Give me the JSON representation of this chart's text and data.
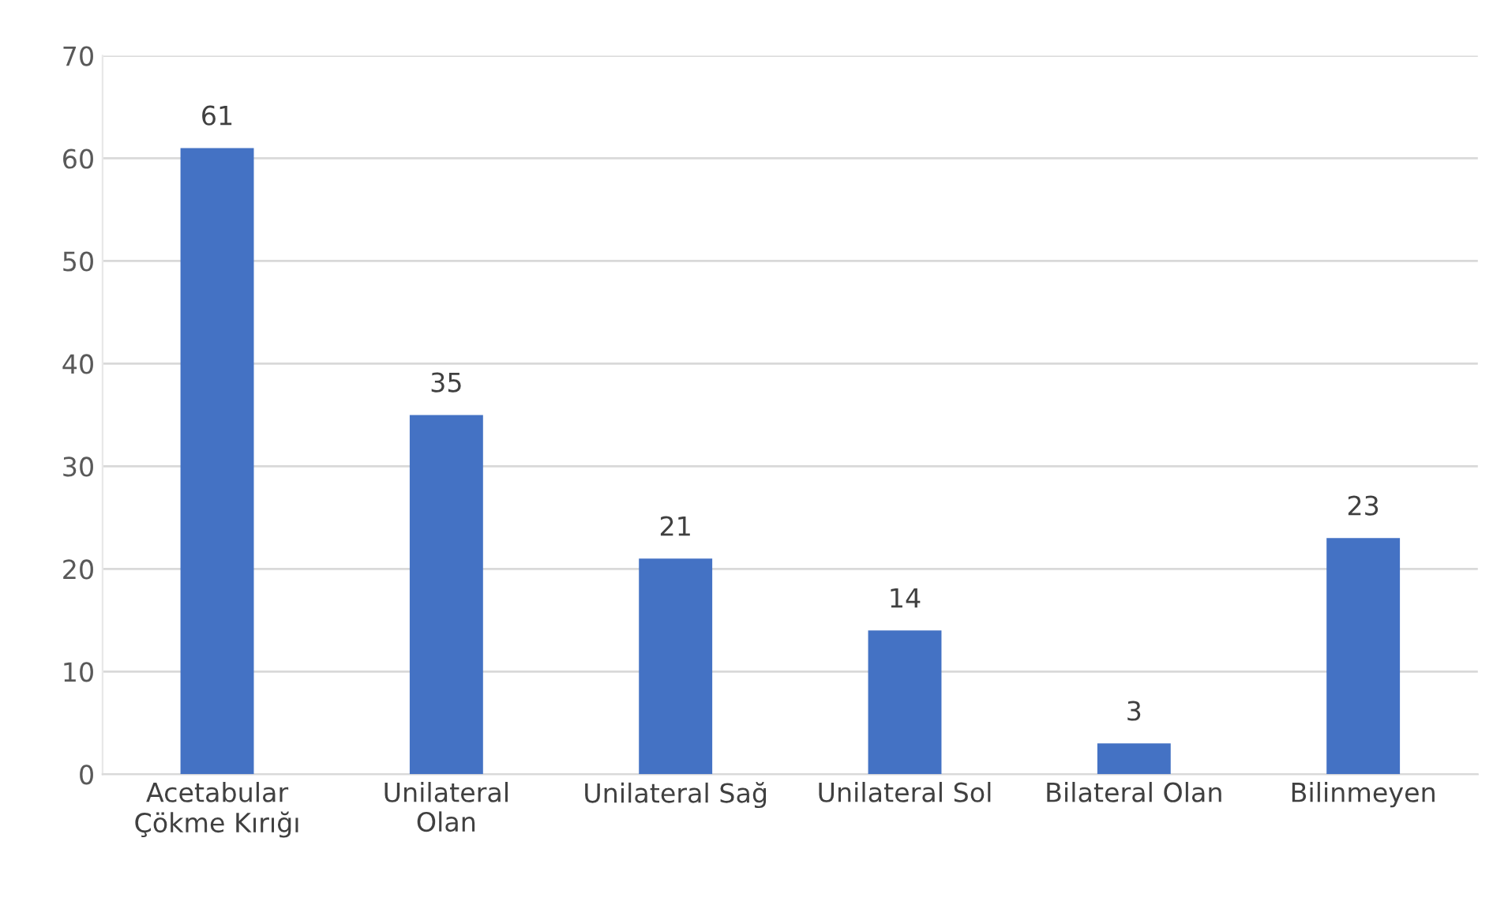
{
  "chart_data": {
    "type": "bar",
    "categories": [
      "Acetabular\nÇökme Kırığı",
      "Unilateral\nOlan",
      "Unilateral Sağ",
      "Unilateral Sol",
      "Bilateral Olan",
      "Bilinmeyen"
    ],
    "values": [
      61,
      35,
      21,
      14,
      3,
      23
    ],
    "color": "#4472c4",
    "ylim": [
      0,
      70
    ],
    "yticks": [
      0,
      10,
      20,
      30,
      40,
      50,
      60,
      70
    ],
    "grid": "y",
    "data_labels": true,
    "legend": false
  }
}
